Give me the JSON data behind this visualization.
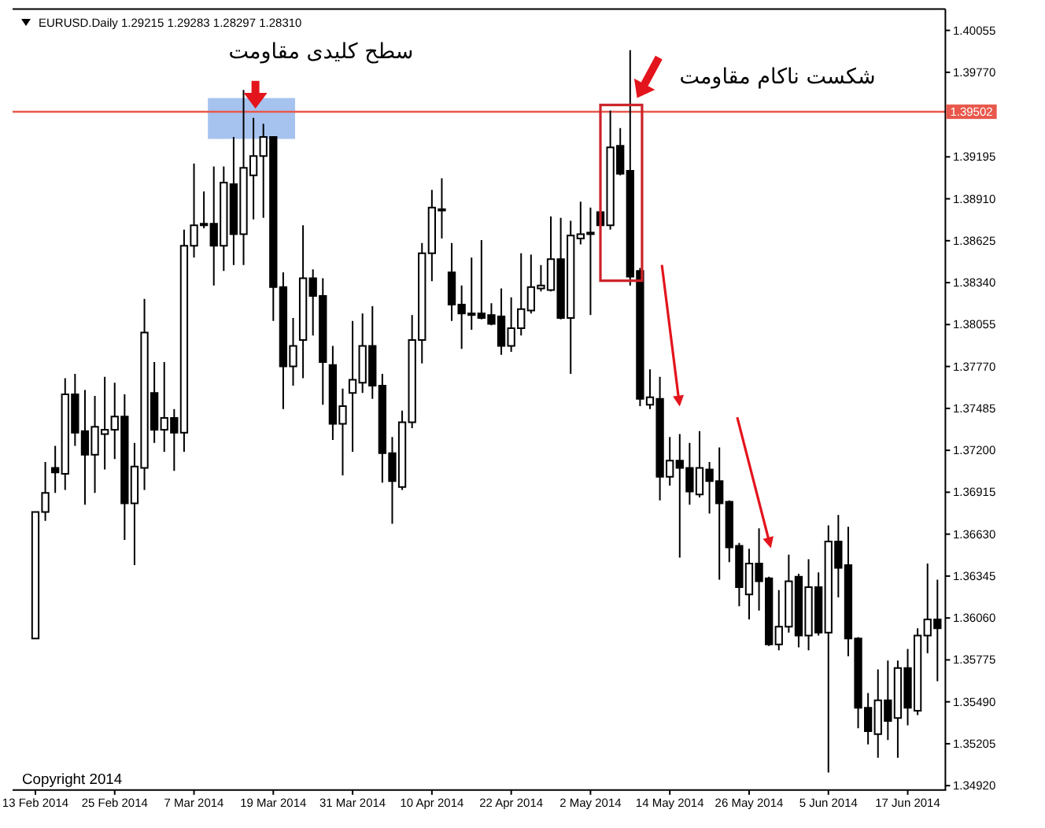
{
  "chart_data": {
    "type": "candlestick",
    "title": "EURUSD.Daily 1.29215 1.29283 1.28297 1.28310",
    "categories": [
      "13 Feb 2014",
      null,
      null,
      null,
      null,
      null,
      null,
      null,
      "25 Feb 2014",
      null,
      null,
      null,
      null,
      null,
      null,
      null,
      "7 Mar 2014",
      null,
      null,
      null,
      null,
      null,
      null,
      null,
      "19 Mar 2014",
      null,
      null,
      null,
      null,
      null,
      null,
      null,
      "31 Mar 2014",
      null,
      null,
      null,
      null,
      null,
      null,
      null,
      "10 Apr 2014",
      null,
      null,
      null,
      null,
      null,
      null,
      null,
      "22 Apr 2014",
      null,
      null,
      null,
      null,
      null,
      null,
      null,
      "2 May 2014",
      null,
      null,
      null,
      null,
      null,
      null,
      null,
      "14 May 2014",
      null,
      null,
      null,
      null,
      null,
      null,
      null,
      "26 May 2014",
      null,
      null,
      null,
      null,
      null,
      null,
      null,
      "5 Jun 2014",
      null,
      null,
      null,
      null,
      null,
      null,
      null,
      "17 Jun 2014",
      null,
      null,
      null
    ],
    "ohlc": [
      [
        1.3592,
        1.3678,
        1.3592,
        1.3678
      ],
      [
        1.3678,
        1.3712,
        1.3672,
        1.3691
      ],
      [
        1.3708,
        1.3723,
        1.3691,
        1.3705
      ],
      [
        1.3704,
        1.3769,
        1.3693,
        1.3758
      ],
      [
        1.3758,
        1.3772,
        1.3723,
        1.3732
      ],
      [
        1.3733,
        1.3761,
        1.3683,
        1.3717
      ],
      [
        1.3717,
        1.3757,
        1.3691,
        1.3736
      ],
      [
        1.3731,
        1.377,
        1.3707,
        1.3734
      ],
      [
        1.3734,
        1.3766,
        1.3714,
        1.3743
      ],
      [
        1.3743,
        1.3758,
        1.3659,
        1.3684
      ],
      [
        1.3684,
        1.3725,
        1.3642,
        1.3709
      ],
      [
        1.3708,
        1.3823,
        1.3693,
        1.38
      ],
      [
        1.3759,
        1.378,
        1.3725,
        1.3734
      ],
      [
        1.3734,
        1.378,
        1.3719,
        1.3742
      ],
      [
        1.3742,
        1.3748,
        1.3706,
        1.3732
      ],
      [
        1.3732,
        1.387,
        1.3719,
        1.3859
      ],
      [
        1.3859,
        1.3915,
        1.3851,
        1.3873
      ],
      [
        1.3874,
        1.3896,
        1.3871,
        1.3873
      ],
      [
        1.3874,
        1.3913,
        1.3832,
        1.3859
      ],
      [
        1.3859,
        1.3913,
        1.3842,
        1.3902
      ],
      [
        1.3901,
        1.3933,
        1.3846,
        1.3867
      ],
      [
        1.3867,
        1.3965,
        1.3846,
        1.3912
      ],
      [
        1.3907,
        1.3946,
        1.3877,
        1.392
      ],
      [
        1.392,
        1.3942,
        1.3878,
        1.3933
      ],
      [
        1.3933,
        1.3933,
        1.3808,
        1.3831
      ],
      [
        1.3831,
        1.3841,
        1.3748,
        1.3777
      ],
      [
        1.3777,
        1.381,
        1.3764,
        1.3791
      ],
      [
        1.3795,
        1.3873,
        1.3769,
        1.3837
      ],
      [
        1.3837,
        1.3843,
        1.3798,
        1.3825
      ],
      [
        1.3825,
        1.3837,
        1.3751,
        1.378
      ],
      [
        1.3778,
        1.3791,
        1.3727,
        1.3738
      ],
      [
        1.3738,
        1.3762,
        1.3703,
        1.375
      ],
      [
        1.3759,
        1.3808,
        1.3719,
        1.3768
      ],
      [
        1.3766,
        1.3813,
        1.3759,
        1.3791
      ],
      [
        1.3791,
        1.3818,
        1.3755,
        1.3764
      ],
      [
        1.3764,
        1.3772,
        1.3698,
        1.3718
      ],
      [
        1.3718,
        1.3729,
        1.367,
        1.3699
      ],
      [
        1.3695,
        1.3747,
        1.3693,
        1.3739
      ],
      [
        1.3739,
        1.3812,
        1.3735,
        1.3795
      ],
      [
        1.3795,
        1.3861,
        1.3779,
        1.3854
      ],
      [
        1.3854,
        1.3897,
        1.3835,
        1.3885
      ],
      [
        1.3884,
        1.3905,
        1.3864,
        1.3883
      ],
      [
        1.3841,
        1.3861,
        1.3808,
        1.3819
      ],
      [
        1.3819,
        1.3832,
        1.3789,
        1.3813
      ],
      [
        1.3813,
        1.3851,
        1.3802,
        1.3812
      ],
      [
        1.3813,
        1.3863,
        1.3809,
        1.381
      ],
      [
        1.3812,
        1.382,
        1.3805,
        1.3806
      ],
      [
        1.3811,
        1.383,
        1.3785,
        1.3791
      ],
      [
        1.3791,
        1.3824,
        1.3787,
        1.3803
      ],
      [
        1.3803,
        1.3854,
        1.3798,
        1.3816
      ],
      [
        1.3815,
        1.3853,
        1.3813,
        1.3831
      ],
      [
        1.383,
        1.3846,
        1.3828,
        1.3832
      ],
      [
        1.3829,
        1.3879,
        1.3828,
        1.385
      ],
      [
        1.385,
        1.3878,
        1.3809,
        1.381
      ],
      [
        1.381,
        1.3876,
        1.3772,
        1.3866
      ],
      [
        1.3864,
        1.3889,
        1.386,
        1.3867
      ],
      [
        1.3867,
        1.3885,
        1.3812,
        1.3868
      ],
      [
        1.3882,
        1.3883,
        1.3872,
        1.3873
      ],
      [
        1.3873,
        1.3951,
        1.387,
        1.3926
      ],
      [
        1.3927,
        1.3939,
        1.3907,
        1.3908
      ],
      [
        1.391,
        1.3992,
        1.3832,
        1.3838
      ],
      [
        1.3842,
        1.3844,
        1.375,
        1.3755
      ],
      [
        1.3751,
        1.3775,
        1.3748,
        1.3756
      ],
      [
        1.3755,
        1.377,
        1.3686,
        1.3702
      ],
      [
        1.3702,
        1.3729,
        1.3696,
        1.3713
      ],
      [
        1.3713,
        1.3731,
        1.3647,
        1.3708
      ],
      [
        1.3708,
        1.3725,
        1.3683,
        1.3692
      ],
      [
        1.369,
        1.3733,
        1.3688,
        1.3708
      ],
      [
        1.3707,
        1.3712,
        1.3677,
        1.3699
      ],
      [
        1.3699,
        1.3722,
        1.3632,
        1.3684
      ],
      [
        1.3685,
        1.3686,
        1.3644,
        1.3654
      ],
      [
        1.3655,
        1.3657,
        1.3614,
        1.3627
      ],
      [
        1.3622,
        1.3653,
        1.3605,
        1.3643
      ],
      [
        1.3643,
        1.3667,
        1.3611,
        1.3631
      ],
      [
        1.3633,
        1.3634,
        1.3587,
        1.3588
      ],
      [
        1.3588,
        1.3625,
        1.3584,
        1.36
      ],
      [
        1.36,
        1.3649,
        1.3596,
        1.3631
      ],
      [
        1.3634,
        1.3636,
        1.3586,
        1.3594
      ],
      [
        1.3594,
        1.3646,
        1.3584,
        1.3627
      ],
      [
        1.3627,
        1.3637,
        1.3594,
        1.3596
      ],
      [
        1.3596,
        1.3669,
        1.3501,
        1.3658
      ],
      [
        1.3658,
        1.3676,
        1.362,
        1.364
      ],
      [
        1.3642,
        1.3668,
        1.358,
        1.3592
      ],
      [
        1.3592,
        1.3593,
        1.3531,
        1.3545
      ],
      [
        1.3545,
        1.3555,
        1.352,
        1.3529
      ],
      [
        1.3527,
        1.3571,
        1.3511,
        1.355
      ],
      [
        1.355,
        1.3577,
        1.3523,
        1.3536
      ],
      [
        1.3538,
        1.3577,
        1.3511,
        1.3572
      ],
      [
        1.3572,
        1.3585,
        1.3533,
        1.3545
      ],
      [
        1.3543,
        1.3599,
        1.354,
        1.3594
      ],
      [
        1.3594,
        1.3643,
        1.3582,
        1.3605
      ],
      [
        1.3605,
        1.3632,
        1.3563,
        1.3599
      ]
    ],
    "ylim": [
      1.3489,
      1.402
    ],
    "yticks": [
      1.40055,
      {
        "value": 1.3977,
        "label": "1.39770"
      },
      1.39195,
      {
        "value": 1.3891,
        "label": "1.38910"
      },
      1.38625,
      {
        "value": 1.3834,
        "label": "1.38340"
      },
      1.38055,
      {
        "value": 1.3777,
        "label": "1.37770"
      },
      1.37485,
      {
        "value": 1.372,
        "label": "1.37200"
      },
      1.36915,
      {
        "value": 1.3663,
        "label": "1.36630"
      },
      1.36345,
      {
        "value": 1.3606,
        "label": "1.36060"
      },
      1.35775,
      {
        "value": 1.3549,
        "label": "1.35490"
      },
      1.35205,
      {
        "value": 1.3492,
        "label": "1.34920"
      }
    ],
    "ref_lines": [
      {
        "axis": "y",
        "value": 1.39502,
        "label": "1.39502",
        "color": "#e8584c"
      }
    ],
    "annotations": [
      {
        "text": "سطح کلیدی مقاومت",
        "y": 1.39502
      },
      {
        "text": "شکست ناکام مقاومت",
        "y": 1.39502
      },
      "Copyright 2014"
    ]
  }
}
